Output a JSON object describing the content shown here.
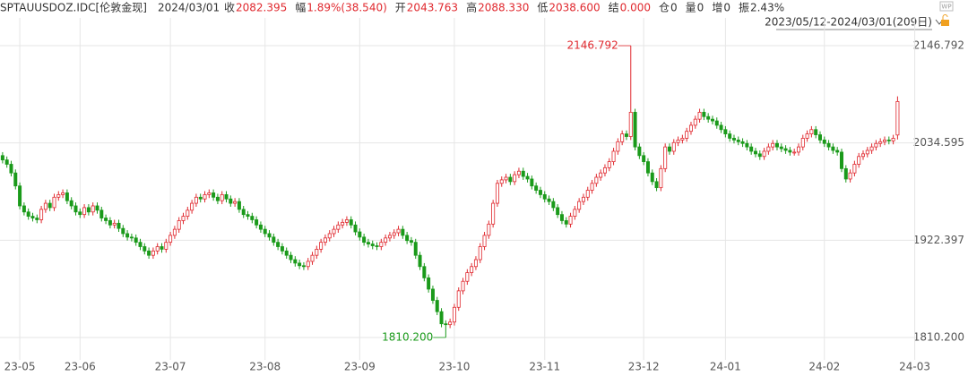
{
  "header": {
    "symbol": "SPTAUUSDOZ.IDC[伦敦金现]",
    "date": "2024/03/01",
    "items": [
      {
        "label": "收",
        "value": "2082.395",
        "color": "#e0282e"
      },
      {
        "label": "幅",
        "value": "1.89%(38.540)",
        "color": "#e0282e"
      },
      {
        "label": "开",
        "value": "2043.763",
        "color": "#e0282e"
      },
      {
        "label": "高",
        "value": "2088.330",
        "color": "#e0282e"
      },
      {
        "label": "低",
        "value": "2038.600",
        "color": "#e0282e"
      },
      {
        "label": "结",
        "value": "0.000",
        "color": "#e0282e"
      },
      {
        "label": "仓",
        "value": "0",
        "color": "#333333"
      },
      {
        "label": "量",
        "value": "0",
        "color": "#333333"
      },
      {
        "label": "增",
        "value": "0",
        "color": "#333333"
      },
      {
        "label": "振",
        "value": "2.43%",
        "color": "#333333"
      }
    ],
    "range": "2023/05/12-2024/03/01(209日)",
    "badge": "WP"
  },
  "chart_data": {
    "type": "candlestick",
    "up_color": "#e0282e",
    "down_color": "#1a9a1a",
    "grid": true,
    "xlim": [
      -0.6,
      212.5
    ],
    "xticks": [
      {
        "value": 4,
        "label": "23-05"
      },
      {
        "value": 18,
        "label": "23-06"
      },
      {
        "value": 39,
        "label": "23-07"
      },
      {
        "value": 61,
        "label": "23-08"
      },
      {
        "value": 83,
        "label": "23-09"
      },
      {
        "value": 105,
        "label": "23-10"
      },
      {
        "value": 126,
        "label": "23-11"
      },
      {
        "value": 149,
        "label": "23-12"
      },
      {
        "value": 168,
        "label": "24-01"
      },
      {
        "value": 191,
        "label": "24-02"
      },
      {
        "value": 212,
        "label": "24-03"
      }
    ],
    "ylim": [
      1788.5,
      2168.5
    ],
    "yticks": [
      2146.792,
      2034.595,
      1922.397,
      {
        "value": 1810.2,
        "label": "1810.200"
      }
    ],
    "annotations": [
      {
        "value": 2146.792,
        "label": "2146.792",
        "color": "#e0282e"
      },
      {
        "value": 1810.2,
        "label": "1810.200",
        "color": "#1a9a1a"
      }
    ],
    "open": [
      2020,
      2015,
      2010,
      2000,
      1985,
      1962,
      1955,
      1950,
      1948,
      1946,
      1958,
      1965,
      1960,
      1972,
      1975,
      1977,
      1968,
      1962,
      1955,
      1952,
      1960,
      1955,
      1962,
      1957,
      1948,
      1945,
      1940,
      1942,
      1936,
      1930,
      1926,
      1925,
      1920,
      1915,
      1910,
      1905,
      1910,
      1915,
      1912,
      1920,
      1928,
      1935,
      1945,
      1950,
      1957,
      1965,
      1972,
      1970,
      1975,
      1977,
      1972,
      1968,
      1975,
      1970,
      1965,
      1967,
      1958,
      1952,
      1950,
      1946,
      1940,
      1935,
      1930,
      1926,
      1920,
      1915,
      1910,
      1905,
      1900,
      1896,
      1893,
      1892,
      1898,
      1905,
      1912,
      1920,
      1925,
      1930,
      1935,
      1940,
      1943,
      1946,
      1940,
      1932,
      1926,
      1920,
      1918,
      1916,
      1915,
      1920,
      1925,
      1928,
      1931,
      1935,
      1928,
      1922,
      1920,
      1905,
      1892,
      1879,
      1866,
      1853,
      1840,
      1826,
      1825,
      1828,
      1845,
      1864,
      1875,
      1885,
      1892,
      1900,
      1915,
      1928,
      1941,
      1965,
      1988,
      1992,
      1995,
      1990,
      1998,
      2002,
      1996,
      1993,
      1985,
      1980,
      1975,
      1970,
      1967,
      1960,
      1952,
      1945,
      1941,
      1950,
      1958,
      1967,
      1972,
      1980,
      1988,
      1995,
      2000,
      2006,
      2013,
      2025,
      2036,
      2045,
      2042,
      2070,
      2030,
      2020,
      2013,
      2000,
      1990,
      1983,
      2005,
      2030,
      2025,
      2035,
      2038,
      2040,
      2048,
      2055,
      2062,
      2070,
      2065,
      2062,
      2060,
      2055,
      2050,
      2045,
      2040,
      2038,
      2036,
      2034,
      2030,
      2025,
      2022,
      2019,
      2025,
      2030,
      2034,
      2030,
      2028,
      2026,
      2024,
      2024,
      2030,
      2040,
      2045,
      2050,
      2044,
      2038,
      2034,
      2030,
      2026,
      2024,
      2005,
      1993,
      2000,
      2010,
      2019,
      2022,
      2026,
      2030,
      2034,
      2036,
      2038,
      2037,
      2043.763
    ],
    "high": [
      2024,
      2019,
      2014,
      2004,
      1989,
      1966,
      1959,
      1954,
      1952,
      1962,
      1969,
      1969,
      1976,
      1979,
      1981,
      1981,
      1972,
      1966,
      1959,
      1964,
      1964,
      1966,
      1966,
      1961,
      1952,
      1949,
      1946,
      1946,
      1940,
      1934,
      1930,
      1929,
      1924,
      1919,
      1914,
      1914,
      1919,
      1919,
      1924,
      1932,
      1939,
      1949,
      1954,
      1961,
      1969,
      1976,
      1976,
      1979,
      1981,
      1981,
      1976,
      1979,
      1979,
      1974,
      1971,
      1971,
      1962,
      1956,
      1954,
      1950,
      1944,
      1939,
      1934,
      1930,
      1924,
      1919,
      1914,
      1909,
      1904,
      1900,
      1897,
      1902,
      1909,
      1916,
      1924,
      1929,
      1934,
      1939,
      1944,
      1947,
      1950,
      1950,
      1944,
      1936,
      1930,
      1924,
      1922,
      1920,
      1924,
      1929,
      1932,
      1935,
      1939,
      1939,
      1932,
      1926,
      1924,
      1909,
      1896,
      1883,
      1870,
      1857,
      1844,
      1830,
      1832,
      1849,
      1868,
      1879,
      1889,
      1896,
      1904,
      1919,
      1932,
      1945,
      1969,
      1992,
      1996,
      1999,
      1999,
      2002,
      2006,
      2006,
      2000,
      1997,
      1989,
      1984,
      1979,
      1974,
      1971,
      1964,
      1956,
      1949,
      1954,
      1962,
      1971,
      1976,
      1984,
      1992,
      1999,
      2004,
      2010,
      2017,
      2029,
      2040,
      2049,
      2049,
      2146.792,
      2074,
      2034,
      2024,
      2017,
      2004,
      1994,
      2009,
      2034,
      2034,
      2039,
      2042,
      2044,
      2052,
      2059,
      2066,
      2074,
      2074,
      2069,
      2066,
      2064,
      2059,
      2054,
      2049,
      2044,
      2042,
      2040,
      2038,
      2034,
      2029,
      2026,
      2029,
      2034,
      2038,
      2038,
      2034,
      2032,
      2030,
      2028,
      2034,
      2044,
      2049,
      2054,
      2054,
      2048,
      2042,
      2038,
      2034,
      2030,
      2028,
      2009,
      2004,
      2014,
      2023,
      2026,
      2030,
      2034,
      2038,
      2040,
      2042,
      2042,
      2044,
      2088.33
    ],
    "low": [
      2011,
      2006,
      1996,
      1981,
      1958,
      1951,
      1946,
      1944,
      1942,
      1942,
      1954,
      1956,
      1956,
      1968,
      1971,
      1964,
      1958,
      1951,
      1948,
      1948,
      1951,
      1951,
      1953,
      1944,
      1941,
      1936,
      1936,
      1932,
      1926,
      1922,
      1921,
      1916,
      1911,
      1906,
      1901,
      1901,
      1906,
      1908,
      1908,
      1916,
      1924,
      1931,
      1941,
      1946,
      1953,
      1961,
      1966,
      1966,
      1971,
      1968,
      1964,
      1964,
      1966,
      1961,
      1961,
      1954,
      1948,
      1946,
      1942,
      1936,
      1931,
      1926,
      1922,
      1916,
      1911,
      1906,
      1901,
      1896,
      1892,
      1889,
      1888,
      1888,
      1894,
      1901,
      1908,
      1916,
      1921,
      1926,
      1931,
      1936,
      1939,
      1936,
      1928,
      1922,
      1916,
      1914,
      1912,
      1911,
      1911,
      1916,
      1921,
      1924,
      1927,
      1924,
      1918,
      1916,
      1901,
      1888,
      1875,
      1862,
      1849,
      1836,
      1822,
      1810.2,
      1821,
      1824,
      1841,
      1860,
      1871,
      1881,
      1888,
      1896,
      1911,
      1924,
      1937,
      1961,
      1984,
      1988,
      1986,
      1986,
      1994,
      1992,
      1989,
      1981,
      1976,
      1971,
      1966,
      1963,
      1956,
      1948,
      1941,
      1937,
      1937,
      1946,
      1954,
      1963,
      1968,
      1976,
      1984,
      1991,
      1996,
      2002,
      2009,
      2021,
      2032,
      2038,
      2038,
      2026,
      2016,
      2009,
      1996,
      1986,
      1979,
      1979,
      2001,
      2021,
      2021,
      2031,
      2034,
      2036,
      2044,
      2051,
      2058,
      2061,
      2058,
      2056,
      2051,
      2046,
      2041,
      2036,
      2034,
      2032,
      2030,
      2026,
      2021,
      2018,
      2015,
      2015,
      2021,
      2026,
      2026,
      2024,
      2022,
      2020,
      2020,
      2020,
      2026,
      2036,
      2041,
      2040,
      2034,
      2030,
      2026,
      2022,
      2020,
      2001,
      1989,
      1989,
      1996,
      2006,
      2015,
      2018,
      2022,
      2026,
      2030,
      2032,
      2033,
      2033,
      2038.6
    ],
    "close": [
      2015,
      2010,
      2000,
      1985,
      1962,
      1955,
      1950,
      1948,
      1946,
      1958,
      1965,
      1960,
      1972,
      1975,
      1977,
      1968,
      1962,
      1955,
      1952,
      1960,
      1955,
      1962,
      1957,
      1948,
      1945,
      1940,
      1942,
      1936,
      1930,
      1926,
      1925,
      1920,
      1915,
      1910,
      1905,
      1910,
      1915,
      1912,
      1920,
      1928,
      1935,
      1945,
      1950,
      1957,
      1965,
      1972,
      1970,
      1975,
      1977,
      1972,
      1968,
      1975,
      1970,
      1965,
      1967,
      1958,
      1952,
      1950,
      1946,
      1940,
      1935,
      1930,
      1926,
      1920,
      1915,
      1910,
      1905,
      1900,
      1896,
      1893,
      1892,
      1898,
      1905,
      1912,
      1920,
      1925,
      1930,
      1935,
      1940,
      1943,
      1946,
      1940,
      1932,
      1926,
      1920,
      1918,
      1916,
      1915,
      1920,
      1925,
      1928,
      1931,
      1935,
      1928,
      1922,
      1920,
      1905,
      1892,
      1879,
      1866,
      1853,
      1840,
      1826,
      1825,
      1828,
      1845,
      1864,
      1875,
      1885,
      1892,
      1900,
      1915,
      1928,
      1941,
      1965,
      1988,
      1992,
      1995,
      1990,
      1998,
      2002,
      1996,
      1993,
      1985,
      1980,
      1975,
      1970,
      1967,
      1960,
      1952,
      1945,
      1941,
      1950,
      1958,
      1967,
      1972,
      1980,
      1988,
      1995,
      2000,
      2006,
      2013,
      2025,
      2036,
      2045,
      2042,
      2070,
      2030,
      2020,
      2013,
      2000,
      1990,
      1983,
      2005,
      2030,
      2025,
      2035,
      2038,
      2040,
      2048,
      2055,
      2062,
      2070,
      2065,
      2062,
      2060,
      2055,
      2050,
      2045,
      2040,
      2038,
      2036,
      2034,
      2030,
      2025,
      2022,
      2019,
      2025,
      2030,
      2034,
      2030,
      2028,
      2026,
      2024,
      2024,
      2030,
      2040,
      2045,
      2050,
      2044,
      2038,
      2034,
      2030,
      2026,
      2024,
      2005,
      1993,
      2000,
      2010,
      2019,
      2022,
      2026,
      2030,
      2034,
      2036,
      2038,
      2037,
      2040,
      2082.395
    ]
  }
}
